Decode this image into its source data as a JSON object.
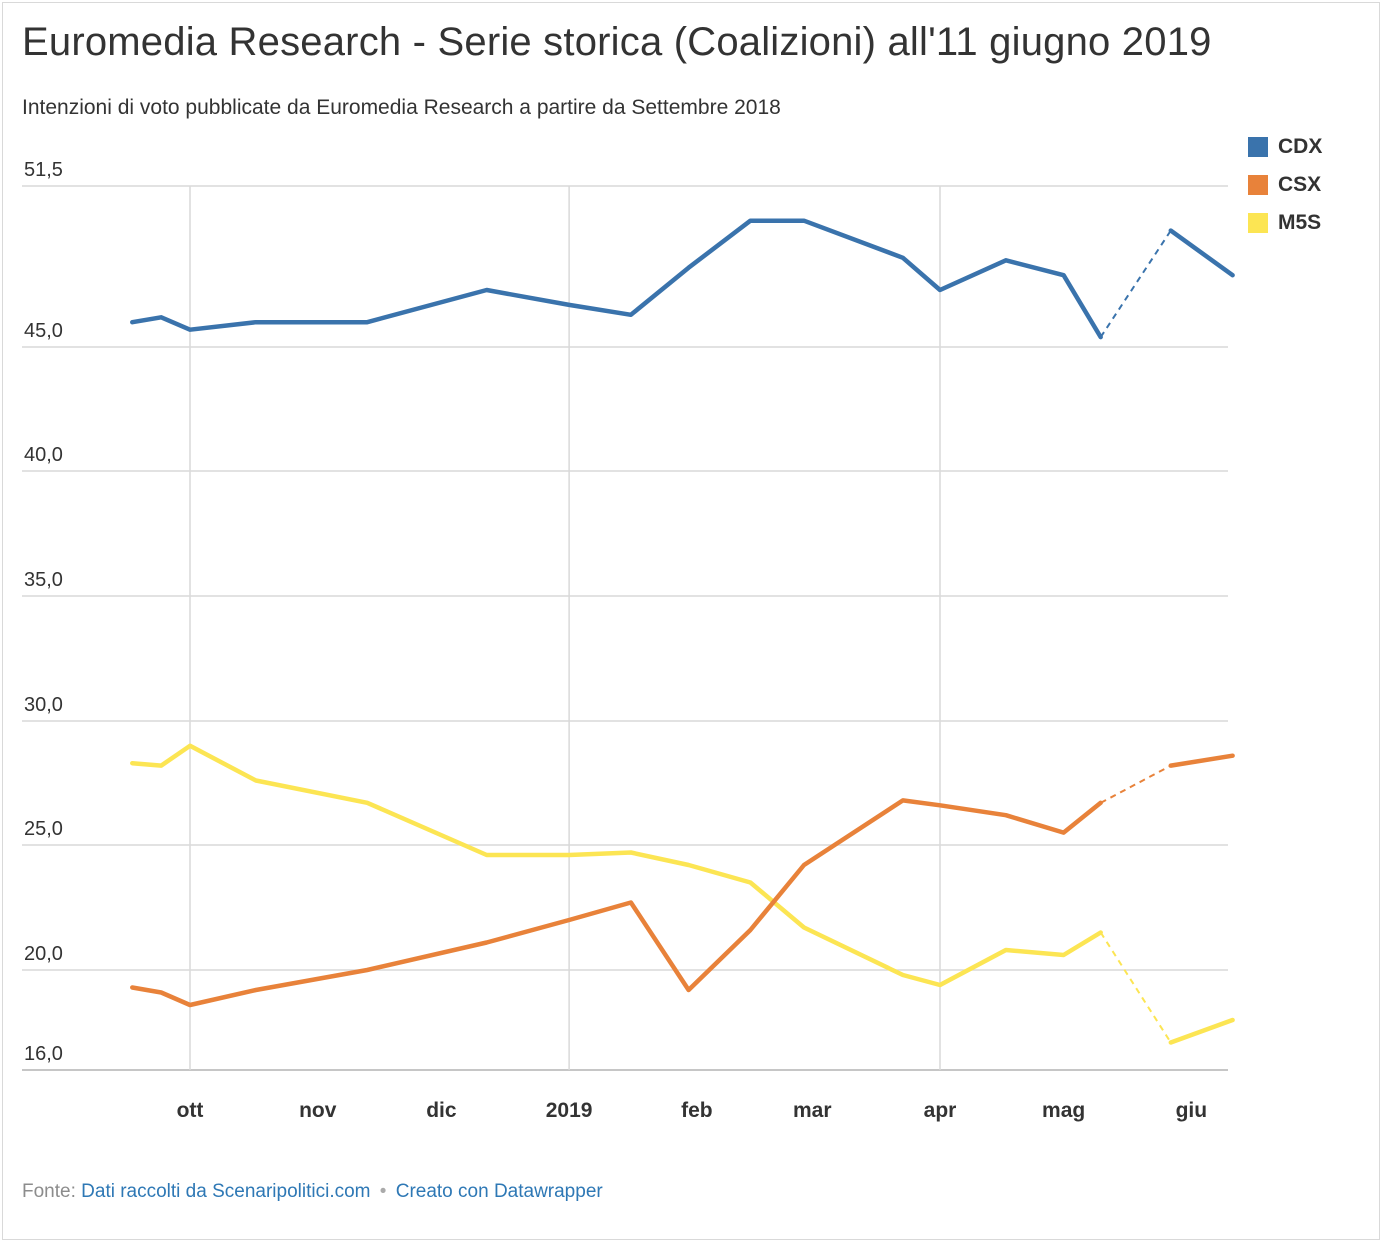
{
  "title": "Euromedia Research - Serie storica (Coalizioni) all'11 giugno 2019",
  "subtitle": "Intenzioni di voto pubblicate da Euromedia Research a partire da Settembre 2018",
  "footer": {
    "source_prefix": "Fonte:",
    "source_link": "Dati raccolti da Scenaripolitici.com",
    "separator": "•",
    "credit_link": "Creato con Datawrapper"
  },
  "chart_data": {
    "type": "line",
    "title": "Euromedia Research - Serie storica (Coalizioni) all'11 giugno 2019",
    "subtitle": "Intenzioni di voto pubblicate da Euromedia Research a partire da Settembre 2018",
    "ylim": [
      16,
      51.5
    ],
    "y_ticks": [
      16,
      20,
      25,
      30,
      35,
      40,
      45,
      51.5
    ],
    "y_tick_labels": [
      "16,0",
      "20,0",
      "25,0",
      "30,0",
      "35,0",
      "40,0",
      "45,0",
      "51,5"
    ],
    "x_ticks": [
      "2018-10-01",
      "2018-11-01",
      "2018-12-01",
      "2019-01-01",
      "2019-02-01",
      "2019-03-01",
      "2019-04-01",
      "2019-05-01",
      "2019-06-01"
    ],
    "x_tick_labels": [
      "ott",
      "nov",
      "dic",
      "2019",
      "feb",
      "mar",
      "apr",
      "mag",
      "giu"
    ],
    "x_range": [
      "2018-09-17",
      "2019-06-11"
    ],
    "x_gridlines": [
      "2018-10-01",
      "2019-01-01",
      "2019-04-01"
    ],
    "grid": true,
    "legend_position": "top-right",
    "x": [
      "2018-09-17",
      "2018-09-24",
      "2018-10-01",
      "2018-10-17",
      "2018-11-13",
      "2018-12-12",
      "2019-01-01",
      "2019-01-16",
      "2019-01-30",
      "2019-02-14",
      "2019-02-27",
      "2019-03-23",
      "2019-04-01",
      "2019-04-17",
      "2019-05-01",
      "2019-05-10",
      "2019-05-27",
      "2019-06-11"
    ],
    "series": [
      {
        "name": "CDX",
        "color": "#3a73ac",
        "values": [
          46.0,
          46.2,
          45.7,
          46.0,
          46.0,
          47.3,
          46.7,
          46.3,
          48.2,
          50.1,
          50.1,
          48.6,
          47.3,
          48.5,
          47.9,
          45.4,
          49.7,
          47.9
        ]
      },
      {
        "name": "CSX",
        "color": "#e8823a",
        "values": [
          19.3,
          19.1,
          18.6,
          19.2,
          20.0,
          21.1,
          22.0,
          22.7,
          19.2,
          21.6,
          24.2,
          26.8,
          26.6,
          26.2,
          25.5,
          26.7,
          28.2,
          28.6
        ]
      },
      {
        "name": "M5S",
        "color": "#fce553",
        "values": [
          28.3,
          28.2,
          29.0,
          27.6,
          26.7,
          24.6,
          24.6,
          24.7,
          24.2,
          23.5,
          21.7,
          19.8,
          19.4,
          20.8,
          20.6,
          21.5,
          17.1,
          18.0
        ]
      }
    ],
    "projected_segment": {
      "from": "2019-05-10",
      "to": "2019-05-27",
      "style": "dashed"
    }
  }
}
